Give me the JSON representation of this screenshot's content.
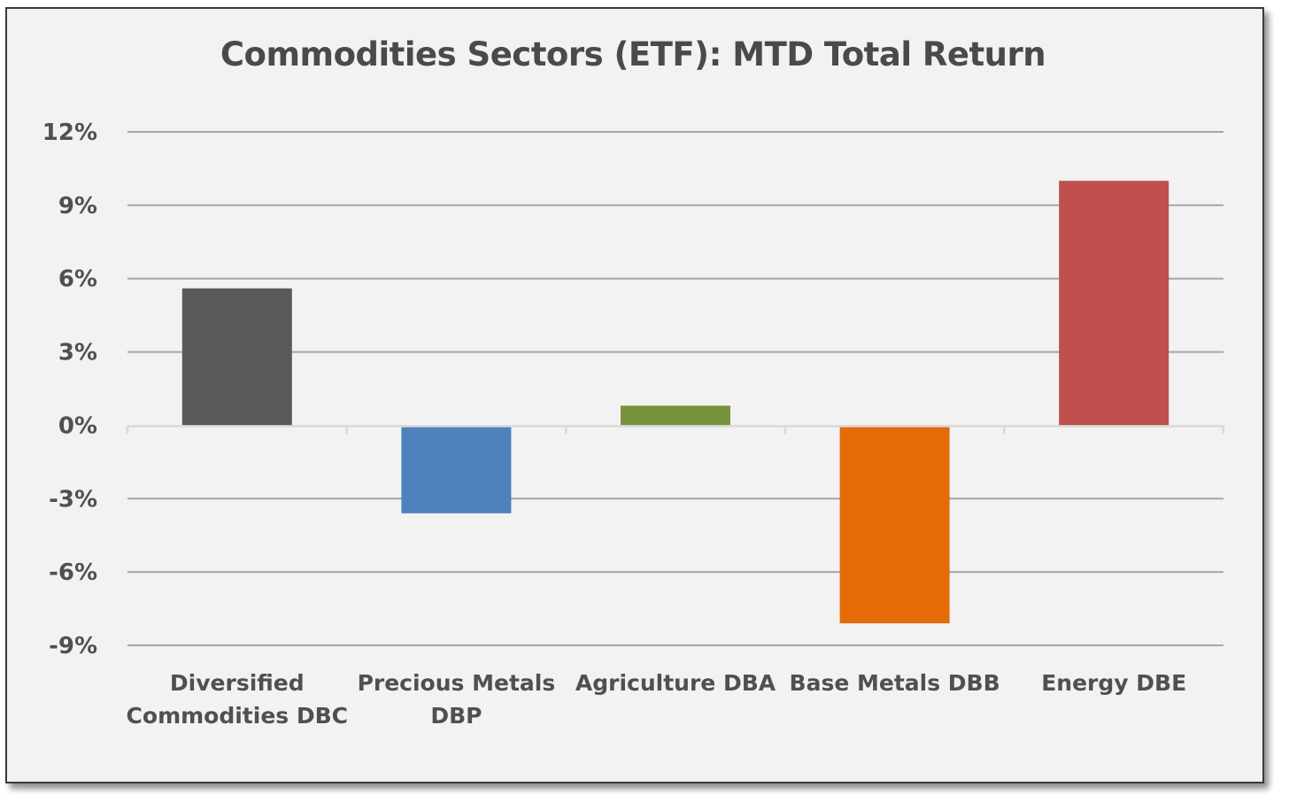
{
  "chart_data": {
    "type": "bar",
    "title": "Commodities Sectors (ETF): MTD Total Return",
    "categories": [
      [
        "Diversified",
        "Commodities DBC"
      ],
      [
        "Precious Metals",
        "DBP"
      ],
      [
        "Agriculture DBA"
      ],
      [
        "Base Metals DBB"
      ],
      [
        "Energy DBE"
      ]
    ],
    "values": [
      5.6,
      -3.6,
      0.8,
      -8.1,
      10.0
    ],
    "bar_colors": [
      "#595959",
      "#4f81bd",
      "#77933c",
      "#e36c09",
      "#c0504d"
    ],
    "unit": "%",
    "ylim": [
      -9,
      12
    ],
    "yticks": [
      12,
      9,
      6,
      3,
      0,
      -3,
      -6,
      -9
    ],
    "ytick_labels": [
      "12%",
      "9%",
      "6%",
      "3%",
      "0%",
      "-3%",
      "-6%",
      "-9%"
    ],
    "grid": true,
    "legend": "none"
  },
  "colors": {
    "background": "#f2f2f2",
    "gridline": "#a6a6a6",
    "axis": "#d9d9d9",
    "text": "#505050"
  }
}
